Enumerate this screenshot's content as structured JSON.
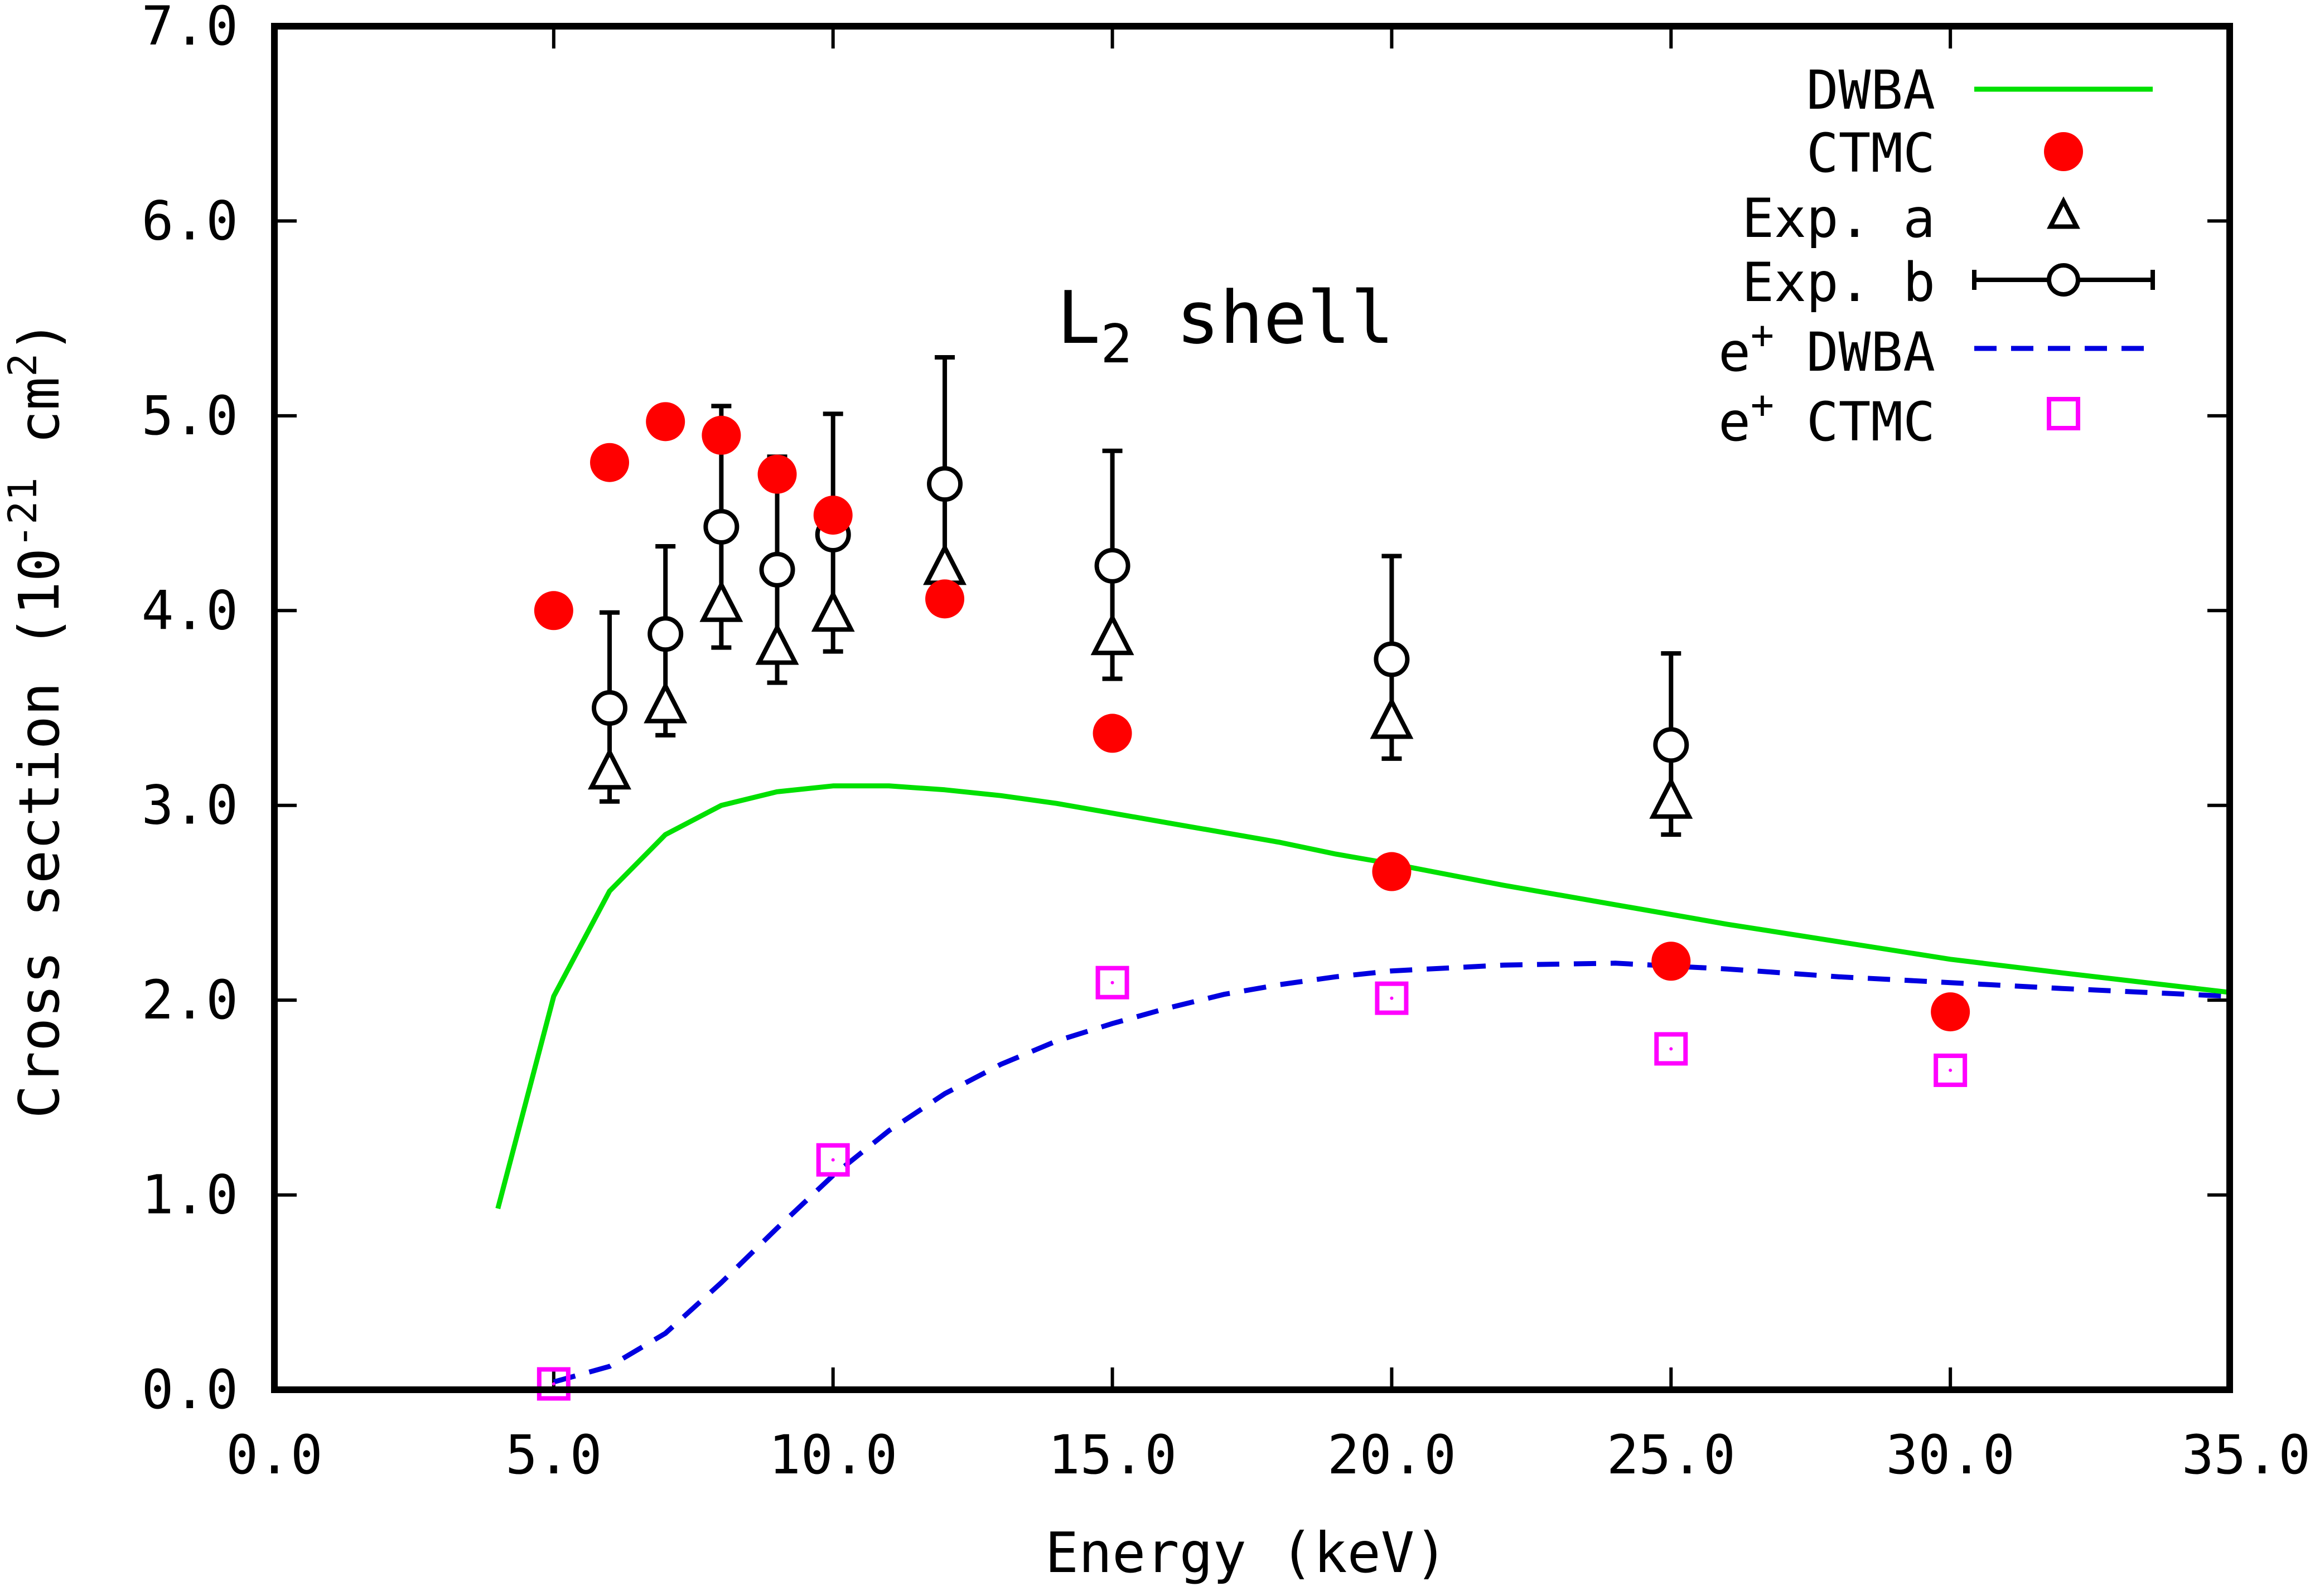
{
  "chart_data": {
    "type": "line",
    "title": "",
    "annotation": {
      "text": "L",
      "subscript": "2",
      "suffix": " shell"
    },
    "xlabel": "Energy (keV)",
    "ylabel": {
      "prefix": "Cross section (10",
      "exponent": "-21",
      "middle": " cm",
      "exponent2": "2",
      "suffix": ")"
    },
    "xlim": [
      0,
      35
    ],
    "ylim": [
      0,
      7
    ],
    "xticks": [
      {
        "value": 0,
        "label": "0.0"
      },
      {
        "value": 5,
        "label": "5.0"
      },
      {
        "value": 10,
        "label": "10.0"
      },
      {
        "value": 15,
        "label": "15.0"
      },
      {
        "value": 20,
        "label": "20.0"
      },
      {
        "value": 25,
        "label": "25.0"
      },
      {
        "value": 30,
        "label": "30.0"
      },
      {
        "value": 35,
        "label": "35.0"
      }
    ],
    "yticks": [
      {
        "value": 0,
        "label": "0.0"
      },
      {
        "value": 1,
        "label": "1.0"
      },
      {
        "value": 2,
        "label": "2.0"
      },
      {
        "value": 3,
        "label": "3.0"
      },
      {
        "value": 4,
        "label": "4.0"
      },
      {
        "value": 5,
        "label": "5.0"
      },
      {
        "value": 6,
        "label": "6.0"
      },
      {
        "value": 7,
        "label": "7.0"
      }
    ],
    "legend_position": "top-right",
    "series": [
      {
        "name": "DWBA",
        "style": "solid-line",
        "color": "#00e000",
        "x": [
          4,
          5,
          6,
          7,
          8,
          9,
          10,
          11,
          12,
          13,
          14,
          15,
          16,
          17,
          18,
          19,
          20,
          22,
          24,
          26,
          28,
          30,
          32,
          35
        ],
        "y": [
          0.93,
          2.02,
          2.56,
          2.85,
          3.0,
          3.07,
          3.1,
          3.1,
          3.08,
          3.05,
          3.01,
          2.96,
          2.91,
          2.86,
          2.81,
          2.75,
          2.7,
          2.59,
          2.49,
          2.39,
          2.3,
          2.21,
          2.14,
          2.04
        ]
      },
      {
        "name": "CTMC",
        "style": "filled-circle",
        "color": "#ff0000",
        "x": [
          5,
          6,
          7,
          8,
          9,
          10,
          12,
          15,
          20,
          25,
          30
        ],
        "y": [
          4.0,
          4.76,
          4.97,
          4.9,
          4.7,
          4.49,
          4.06,
          3.37,
          2.66,
          2.2,
          1.94
        ]
      },
      {
        "name": "Exp. a",
        "style": "open-triangle",
        "color": "#000000",
        "x": [
          6,
          7,
          8,
          9,
          10,
          12,
          15,
          20,
          25
        ],
        "y": [
          3.17,
          3.51,
          4.03,
          3.81,
          3.98,
          4.22,
          3.86,
          3.43,
          3.02
        ]
      },
      {
        "name": "Exp. b",
        "style": "open-circle-errorbar",
        "color": "#000000",
        "x": [
          6,
          7,
          8,
          9,
          10,
          12,
          15,
          20,
          25
        ],
        "y": [
          3.5,
          3.88,
          4.43,
          4.21,
          4.39,
          4.65,
          4.23,
          3.75,
          3.31
        ],
        "yerr_low": [
          3.02,
          3.36,
          3.81,
          3.63,
          3.79,
          4.04,
          3.65,
          3.24,
          2.85
        ],
        "yerr_high": [
          3.99,
          4.33,
          5.05,
          4.79,
          5.01,
          5.3,
          4.82,
          4.28,
          3.78
        ]
      },
      {
        "name": "e+ DWBA",
        "legend_prefix": "e",
        "legend_sup": "+",
        "legend_suffix": " DWBA",
        "style": "dashed-line",
        "color": "#0000e0",
        "x": [
          5,
          6,
          7,
          8,
          9,
          10,
          11,
          12,
          13,
          14,
          15,
          16,
          17,
          18,
          19,
          20,
          22,
          24,
          26,
          28,
          30,
          32,
          35
        ],
        "y": [
          0.04,
          0.12,
          0.29,
          0.55,
          0.83,
          1.1,
          1.33,
          1.52,
          1.67,
          1.79,
          1.88,
          1.96,
          2.03,
          2.08,
          2.12,
          2.15,
          2.18,
          2.19,
          2.16,
          2.12,
          2.09,
          2.06,
          2.02
        ]
      },
      {
        "name": "e+ CTMC",
        "legend_prefix": "e",
        "legend_sup": "+",
        "legend_suffix": " CTMC",
        "style": "open-square",
        "color": "#ff00ff",
        "x": [
          5,
          10,
          15,
          20,
          25,
          30
        ],
        "y": [
          0.03,
          1.18,
          2.09,
          2.01,
          1.75,
          1.64
        ]
      }
    ]
  }
}
